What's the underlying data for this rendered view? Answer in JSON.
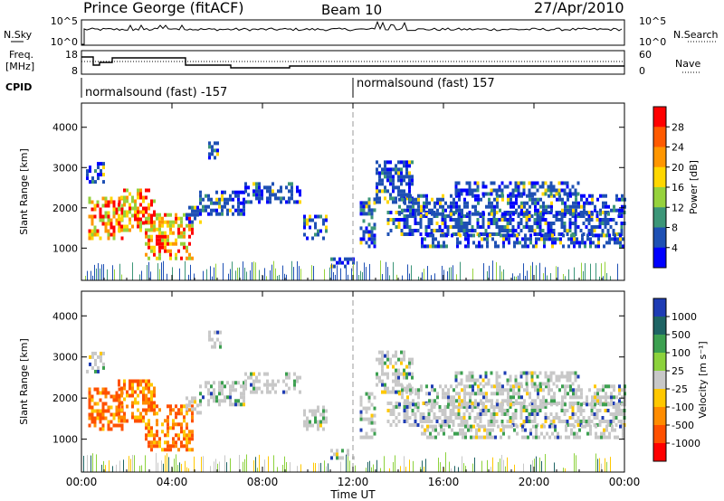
{
  "header": {
    "station": "Prince George (fitACF)",
    "beam": "Beam 10",
    "date": "27/Apr/2010"
  },
  "nsky_panel": {
    "left_label": "N.Sky",
    "right_label": "N.Search",
    "left_ticks": [
      "10^5",
      "10^0"
    ],
    "right_ticks": [
      "10^5",
      "10^0"
    ]
  },
  "freq_panel": {
    "left_label_1": "Freq.",
    "left_label_2": "[MHz]",
    "right_label": "Nave",
    "left_ticks": [
      "18",
      "8"
    ],
    "right_ticks": [
      "60",
      "0"
    ]
  },
  "cpid_panel": {
    "label": "CPID",
    "mode_1": "normalsound (fast) -157",
    "mode_2": "normalsound (fast) 157"
  },
  "x_axis": {
    "title": "Time UT",
    "ticks": [
      "00:00",
      "04:00",
      "08:00",
      "12:00",
      "16:00",
      "20:00",
      "00:00"
    ]
  },
  "power_colorbar": {
    "label": "Power [dB]",
    "ticks": [
      "28",
      "24",
      "20",
      "16",
      "12",
      "8",
      "4"
    ],
    "colors": [
      "#ff0000",
      "#ff5a00",
      "#ff9600",
      "#ffd700",
      "#96d23c",
      "#3c9678",
      "#1e50b4",
      "#0000ff"
    ]
  },
  "velocity_colorbar": {
    "label": "Velocity [m s⁻¹]",
    "ticks": [
      "1000",
      "500",
      "100",
      "25",
      "-25",
      "-100",
      "-500",
      "-1000"
    ],
    "colors": [
      "#1e3cb4",
      "#1e6464",
      "#3ca050",
      "#8cd23c",
      "#c8c8c8",
      "#ffc800",
      "#ff8c00",
      "#ff5000",
      "#ff0000"
    ]
  },
  "chart_data": [
    {
      "type": "heatmap",
      "title": "",
      "ylabel": "Slant Range [km]",
      "xlabel": "",
      "yticks": [
        "1000",
        "2000",
        "3000",
        "4000"
      ],
      "ylim": [
        200,
        4600
      ],
      "xlim_hours": [
        0,
        24
      ],
      "colorbar": "Power [dB]",
      "features": [
        {
          "x_hours": [
            0.2,
            4.8
          ],
          "range_km": [
            700,
            3100
          ],
          "values_db": [
            8,
            28
          ]
        },
        {
          "x_hours": [
            5.0,
            9.5
          ],
          "range_km": [
            1600,
            2600
          ],
          "values_db": [
            4,
            16
          ]
        },
        {
          "x_hours": [
            12.3,
            24.0
          ],
          "range_km": [
            800,
            3300
          ],
          "values_db": [
            4,
            20
          ]
        }
      ]
    },
    {
      "type": "heatmap",
      "title": "",
      "ylabel": "Slant Range [km]",
      "xlabel": "Time UT",
      "yticks": [
        "1000",
        "2000",
        "3000",
        "4000"
      ],
      "ylim": [
        200,
        4600
      ],
      "xlim_hours": [
        0,
        24
      ],
      "colorbar": "Velocity [m s⁻¹]",
      "features": [
        {
          "x_hours": [
            0.5,
            4.8
          ],
          "range_km": [
            700,
            2600
          ],
          "values_ms": [
            -500,
            -100
          ]
        },
        {
          "x_hours": [
            4.8,
            10.0
          ],
          "range_km": [
            1600,
            2500
          ],
          "values_ms": [
            -25,
            25
          ]
        },
        {
          "x_hours": [
            12.3,
            24.0
          ],
          "range_km": [
            800,
            3300
          ],
          "values_ms": [
            -25,
            25
          ]
        }
      ]
    }
  ]
}
